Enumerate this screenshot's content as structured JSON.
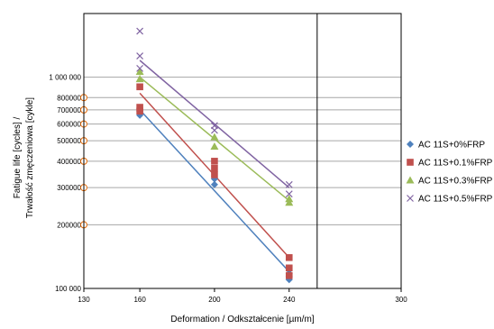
{
  "chart_data": {
    "type": "scatter",
    "xlabel": "Deformation / Odkształcenie [µm/m]",
    "ylabel_line1": "Fatigue life [cycles] /",
    "ylabel_line2": "Trwałość zmęczeniowa [cykle]",
    "xlim": [
      130,
      300
    ],
    "ylim": [
      100000,
      2000000
    ],
    "yscale": "log",
    "x_ticks": [
      130,
      160,
      200,
      240,
      300
    ],
    "y_ticks": [
      {
        "value": 100000,
        "label": "100 000"
      },
      {
        "value": 200000,
        "label": "200000"
      },
      {
        "value": 300000,
        "label": "300000"
      },
      {
        "value": 400000,
        "label": "400000"
      },
      {
        "value": 500000,
        "label": "500000"
      },
      {
        "value": 600000,
        "label": "600000"
      },
      {
        "value": 700000,
        "label": "700000"
      },
      {
        "value": 800000,
        "label": "800000"
      },
      {
        "value": 1000000,
        "label": "1 000 000"
      }
    ],
    "grid": true,
    "legend_position": "right",
    "series": [
      {
        "name": "AC 11S+0%FRP",
        "marker": "diamond",
        "color": "#4f81bd",
        "points": [
          [
            160,
            660000
          ],
          [
            160,
            690000
          ],
          [
            200,
            310000
          ],
          [
            200,
            330000
          ],
          [
            240,
            110000
          ],
          [
            240,
            114000
          ],
          [
            240,
            118000
          ]
        ],
        "trend": [
          [
            160,
            700000
          ],
          [
            240,
            120000
          ]
        ]
      },
      {
        "name": "AC 11S+0.1%FRP",
        "marker": "square",
        "color": "#c0504d",
        "points": [
          [
            160,
            900000
          ],
          [
            160,
            720000
          ],
          [
            160,
            690000
          ],
          [
            200,
            400000
          ],
          [
            200,
            370000
          ],
          [
            200,
            345000
          ],
          [
            240,
            140000
          ],
          [
            240,
            125000
          ],
          [
            240,
            115000
          ]
        ],
        "trend": [
          [
            160,
            840000
          ],
          [
            240,
            140000
          ]
        ]
      },
      {
        "name": "AC 11S+0.3%FRP",
        "marker": "triangle",
        "color": "#9bbb59",
        "points": [
          [
            160,
            1060000
          ],
          [
            160,
            980000
          ],
          [
            200,
            520000
          ],
          [
            200,
            470000
          ],
          [
            240,
            265000
          ],
          [
            240,
            255000
          ]
        ],
        "trend": [
          [
            160,
            1000000
          ],
          [
            240,
            260000
          ]
        ]
      },
      {
        "name": "AC 11S+0.5%FRP",
        "marker": "x",
        "color": "#8064a2",
        "points": [
          [
            160,
            1650000
          ],
          [
            160,
            1260000
          ],
          [
            160,
            1100000
          ],
          [
            200,
            590000
          ],
          [
            200,
            560000
          ],
          [
            240,
            310000
          ],
          [
            240,
            280000
          ]
        ],
        "trend": [
          [
            160,
            1200000
          ],
          [
            240,
            300000
          ]
        ]
      }
    ],
    "extra_markers": {
      "marker": "circle",
      "color": "#e46c0a",
      "x": 130,
      "y_values": [
        800000,
        700000,
        600000,
        500000,
        400000,
        300000,
        200000
      ]
    },
    "vertical_line_x": 255
  }
}
